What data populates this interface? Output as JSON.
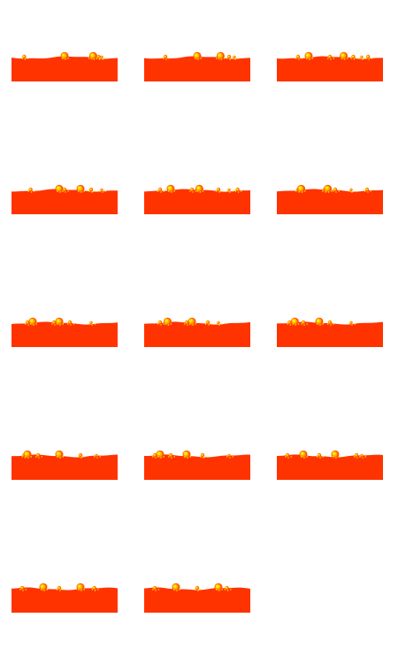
{
  "colors": {
    "background": "#ffffff",
    "fluid": "#ff3300",
    "droplet_outer": "#ff5500",
    "droplet_mid": "#ffaa00",
    "droplet_core": "#ffee00"
  },
  "frames": [
    {
      "bubbles": [
        0.12,
        0.5,
        0.75,
        0.77,
        0.82,
        0.85
      ],
      "phase": 0.0
    },
    {
      "bubbles": [
        0.2,
        0.5,
        0.7,
        0.72,
        0.8,
        0.85
      ],
      "phase": 0.3
    },
    {
      "bubbles": [
        0.2,
        0.3,
        0.5,
        0.63,
        0.72,
        0.8,
        0.86
      ],
      "phase": 0.6
    },
    {
      "bubbles": [
        0.18,
        0.45,
        0.5,
        0.65,
        0.75,
        0.85
      ],
      "phase": 0.9
    },
    {
      "bubbles": [
        0.15,
        0.25,
        0.45,
        0.52,
        0.7,
        0.8,
        0.88
      ],
      "phase": 1.2
    },
    {
      "bubbles": [
        0.2,
        0.23,
        0.45,
        0.48,
        0.55,
        0.7,
        0.85
      ],
      "phase": 1.5
    },
    {
      "bubbles": [
        0.15,
        0.2,
        0.4,
        0.45,
        0.55,
        0.75
      ],
      "phase": 1.8
    },
    {
      "bubbles": [
        0.15,
        0.22,
        0.4,
        0.45,
        0.6,
        0.7
      ],
      "phase": 2.1
    },
    {
      "bubbles": [
        0.12,
        0.17,
        0.25,
        0.4,
        0.5,
        0.7
      ],
      "phase": 2.4
    },
    {
      "bubbles": [
        0.12,
        0.15,
        0.25,
        0.45,
        0.65,
        0.8
      ],
      "phase": 2.7
    },
    {
      "bubbles": [
        0.1,
        0.15,
        0.25,
        0.4,
        0.55,
        0.8
      ],
      "phase": 3.0
    },
    {
      "bubbles": [
        0.1,
        0.25,
        0.4,
        0.55,
        0.75,
        0.8
      ],
      "phase": 3.3
    },
    {
      "bubbles": [
        0.1,
        0.3,
        0.45,
        0.65,
        0.78
      ],
      "phase": 3.6
    },
    {
      "bubbles": [
        0.1,
        0.3,
        0.5,
        0.7,
        0.78
      ],
      "phase": 3.9
    }
  ]
}
